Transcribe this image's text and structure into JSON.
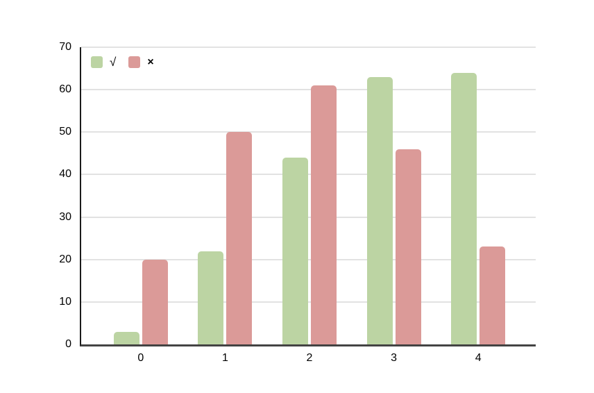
{
  "chart_data": {
    "type": "bar",
    "title": "",
    "categories": [
      "0",
      "1",
      "2",
      "3",
      "4"
    ],
    "series": [
      {
        "name": "√",
        "color": "#bcd4a3",
        "values": [
          3,
          22,
          44,
          63,
          64
        ]
      },
      {
        "name": "×",
        "color": "#db9a98",
        "values": [
          20,
          50,
          61,
          46,
          23
        ]
      }
    ],
    "xlabel": "",
    "ylabel": "",
    "ylim": [
      0,
      70
    ],
    "yticks": [
      0,
      10,
      20,
      30,
      40,
      50,
      60,
      70
    ],
    "grid": true,
    "legend_position": "top-left",
    "colors": {
      "background": "#ffffff",
      "gridline": "#e2e2e2",
      "y_axis_line": "#1a1a1a",
      "x_axis_line": "#434343",
      "text": "#000000"
    }
  }
}
